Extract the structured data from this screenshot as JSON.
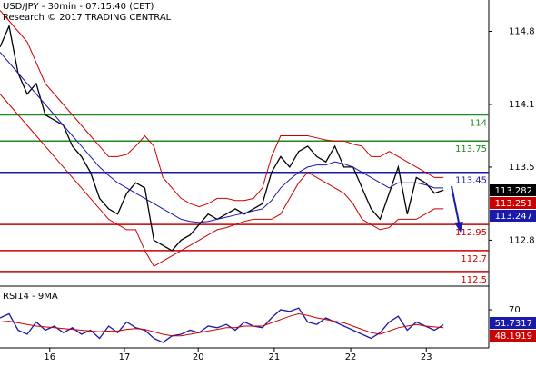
{
  "chart_data": [
    {
      "type": "line",
      "title": "USD/JPY - 30min - 07:15:40 (CET)",
      "subtitle": "Research © 2017 TRADING CENTRAL",
      "xlim": [
        0,
        54
      ],
      "xticks": [
        {
          "value": 5.5,
          "label": "16"
        },
        {
          "value": 13.75,
          "label": "17"
        },
        {
          "value": 21.9,
          "label": "20"
        },
        {
          "value": 30.3,
          "label": "21"
        },
        {
          "value": 38.75,
          "label": "22"
        },
        {
          "value": 47.1,
          "label": "23"
        }
      ],
      "ylim": [
        112.36,
        115.1
      ],
      "yticks": [
        114.8,
        114.1,
        113.5,
        112.8
      ],
      "levels": [
        {
          "value": 114,
          "color": "#1e8a1e"
        },
        {
          "value": 113.75,
          "color": "#1e8a1e"
        },
        {
          "value": 113.45,
          "color": "#1a1aa8"
        },
        {
          "value": 112.95,
          "color": "#cc0000"
        },
        {
          "value": 112.7,
          "color": "#cc0000"
        },
        {
          "value": 112.5,
          "color": "#cc0000"
        }
      ],
      "price_boxes": [
        {
          "label": "113.282",
          "color": "#000000"
        },
        {
          "label": "113.251",
          "color": "#cc0000"
        },
        {
          "label": "113.247",
          "color": "#1a1aa8"
        }
      ],
      "series": [
        {
          "color": "#000000",
          "values": [
            114.65,
            114.85,
            114.4,
            114.2,
            114.3,
            114.0,
            113.95,
            113.9,
            113.7,
            113.6,
            113.45,
            113.2,
            113.1,
            113.05,
            113.25,
            113.35,
            113.3,
            112.8,
            112.75,
            112.7,
            112.8,
            112.85,
            112.95,
            113.05,
            113.0,
            113.05,
            113.1,
            113.05,
            113.1,
            113.15,
            113.45,
            113.6,
            113.5,
            113.65,
            113.7,
            113.6,
            113.55,
            113.7,
            113.5,
            113.5,
            113.3,
            113.1,
            113.0,
            113.25,
            113.5,
            113.05,
            113.4,
            113.35,
            113.25,
            113.28
          ]
        },
        {
          "color": "#1a1aa8",
          "values": [
            114.6,
            114.5,
            114.4,
            114.3,
            114.2,
            114.1,
            114.0,
            113.9,
            113.8,
            113.7,
            113.6,
            113.5,
            113.42,
            113.35,
            113.3,
            113.25,
            113.2,
            113.15,
            113.1,
            113.05,
            113.0,
            112.98,
            112.97,
            112.98,
            113.0,
            113.02,
            113.04,
            113.06,
            113.08,
            113.1,
            113.18,
            113.3,
            113.38,
            113.45,
            113.5,
            113.52,
            113.52,
            113.55,
            113.53,
            113.5,
            113.45,
            113.4,
            113.35,
            113.3,
            113.35,
            113.35,
            113.35,
            113.33,
            113.3,
            113.3
          ]
        },
        {
          "color": "#cc0000",
          "values": [
            115.0,
            114.9,
            114.8,
            114.7,
            114.5,
            114.3,
            114.2,
            114.1,
            114.0,
            113.9,
            113.8,
            113.7,
            113.6,
            113.6,
            113.62,
            113.7,
            113.8,
            113.7,
            113.4,
            113.3,
            113.2,
            113.15,
            113.12,
            113.15,
            113.2,
            113.2,
            113.18,
            113.18,
            113.2,
            113.3,
            113.6,
            113.8,
            113.8,
            113.8,
            113.8,
            113.78,
            113.76,
            113.75,
            113.75,
            113.72,
            113.7,
            113.6,
            113.6,
            113.65,
            113.6,
            113.55,
            113.5,
            113.45,
            113.4,
            113.4
          ]
        },
        {
          "color": "#cc0000",
          "values": [
            114.2,
            114.1,
            114.0,
            113.9,
            113.8,
            113.7,
            113.6,
            113.5,
            113.4,
            113.3,
            113.2,
            113.1,
            113.0,
            112.95,
            112.9,
            112.9,
            112.7,
            112.55,
            112.6,
            112.65,
            112.7,
            112.75,
            112.8,
            112.85,
            112.9,
            112.92,
            112.95,
            112.98,
            113.0,
            113.0,
            113.0,
            113.05,
            113.2,
            113.35,
            113.45,
            113.4,
            113.35,
            113.3,
            113.25,
            113.15,
            113.0,
            112.95,
            112.9,
            112.92,
            113.0,
            113.0,
            113.0,
            113.05,
            113.1,
            113.1
          ]
        }
      ]
    },
    {
      "type": "line",
      "title": "RSI14 - 9MA",
      "xlim": [
        0,
        54
      ],
      "ylim": [
        26.7,
        95.6
      ],
      "yticks": [
        70
      ],
      "price_boxes": [
        {
          "label": "51.7317",
          "color": "#1a1aa8"
        },
        {
          "label": "48.1919",
          "color": "#cc0000"
        }
      ],
      "series": [
        {
          "color": "#1a1aa8",
          "values": [
            60,
            65,
            45,
            40,
            55,
            45,
            50,
            42,
            48,
            40,
            45,
            35,
            50,
            42,
            55,
            48,
            45,
            35,
            30,
            38,
            40,
            45,
            42,
            50,
            48,
            52,
            45,
            55,
            50,
            48,
            60,
            70,
            68,
            72,
            55,
            52,
            60,
            55,
            50,
            45,
            40,
            35,
            42,
            55,
            62,
            45,
            55,
            50,
            45,
            51.73
          ]
        },
        {
          "color": "#cc0000",
          "values": [
            55,
            56,
            54,
            52,
            50,
            49,
            48,
            47,
            46,
            45,
            44,
            43,
            44,
            44,
            46,
            47,
            46,
            43,
            40,
            38,
            38,
            40,
            42,
            44,
            46,
            48,
            48,
            50,
            50,
            50,
            54,
            58,
            62,
            65,
            63,
            60,
            58,
            56,
            54,
            50,
            46,
            42,
            40,
            44,
            48,
            50,
            52,
            50,
            49,
            48.19
          ]
        }
      ]
    }
  ]
}
